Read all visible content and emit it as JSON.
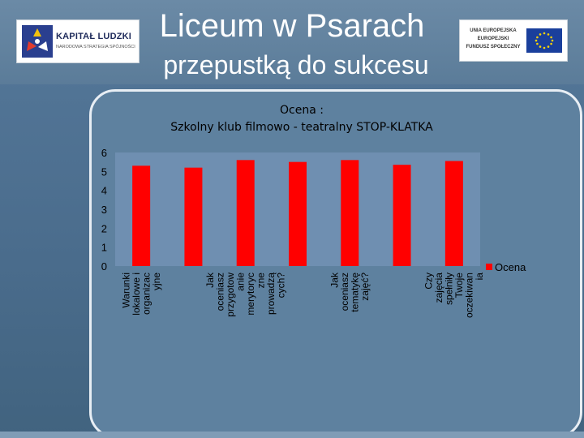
{
  "header": {
    "title_line1": "Liceum w Psarach",
    "title_line2": "przepustką do sukcesu",
    "logo_left_name": "KAPITAŁ LUDZKI",
    "logo_left_sub": "NARODOWA STRATEGIA SPÓJNOŚCI",
    "logo_right_lines": [
      "UNIA EUROPEJSKA",
      "EUROPEJSKI",
      "FUNDUSZ SPOŁECZNY"
    ]
  },
  "colors": {
    "bar": "#ff0000",
    "plot_bg": "#6f8fb1"
  },
  "chart_data": {
    "type": "bar",
    "title": "Ocena :",
    "subtitle": "Szkolny klub filmowo - teatralny STOP-KLATKA",
    "categories": [
      "Warunki lokalowe i organizacyjne",
      "",
      "Jak oceniasz przygotowanie merytoryczne prowadzących?",
      "",
      "Jak oceniasz tematykę zajęć?",
      "",
      "Czy zajęcia spełniły Twoje oczekiwania"
    ],
    "category_label_lines": [
      [
        "Warunki",
        "lokalowe i",
        "organizac",
        "yjne"
      ],
      [],
      [
        "Jak",
        "oceniasz",
        "przygotow",
        "anie",
        "merytoryc",
        "zne",
        "prowadzą",
        "cych?"
      ],
      [],
      [
        "Jak",
        "oceniasz",
        "tematykę",
        "zajęć?"
      ],
      [],
      [
        "Czy",
        "zajęcia",
        "spełniły",
        "Twoje",
        "oczekiwan",
        "ia"
      ]
    ],
    "series": [
      {
        "name": "Ocena",
        "values": [
          5.3,
          5.2,
          5.6,
          5.5,
          5.6,
          5.35,
          5.55
        ]
      }
    ],
    "ylim": [
      0,
      6
    ],
    "yticks": [
      0,
      1,
      2,
      3,
      4,
      5,
      6
    ],
    "grid": false,
    "legend": "right"
  }
}
